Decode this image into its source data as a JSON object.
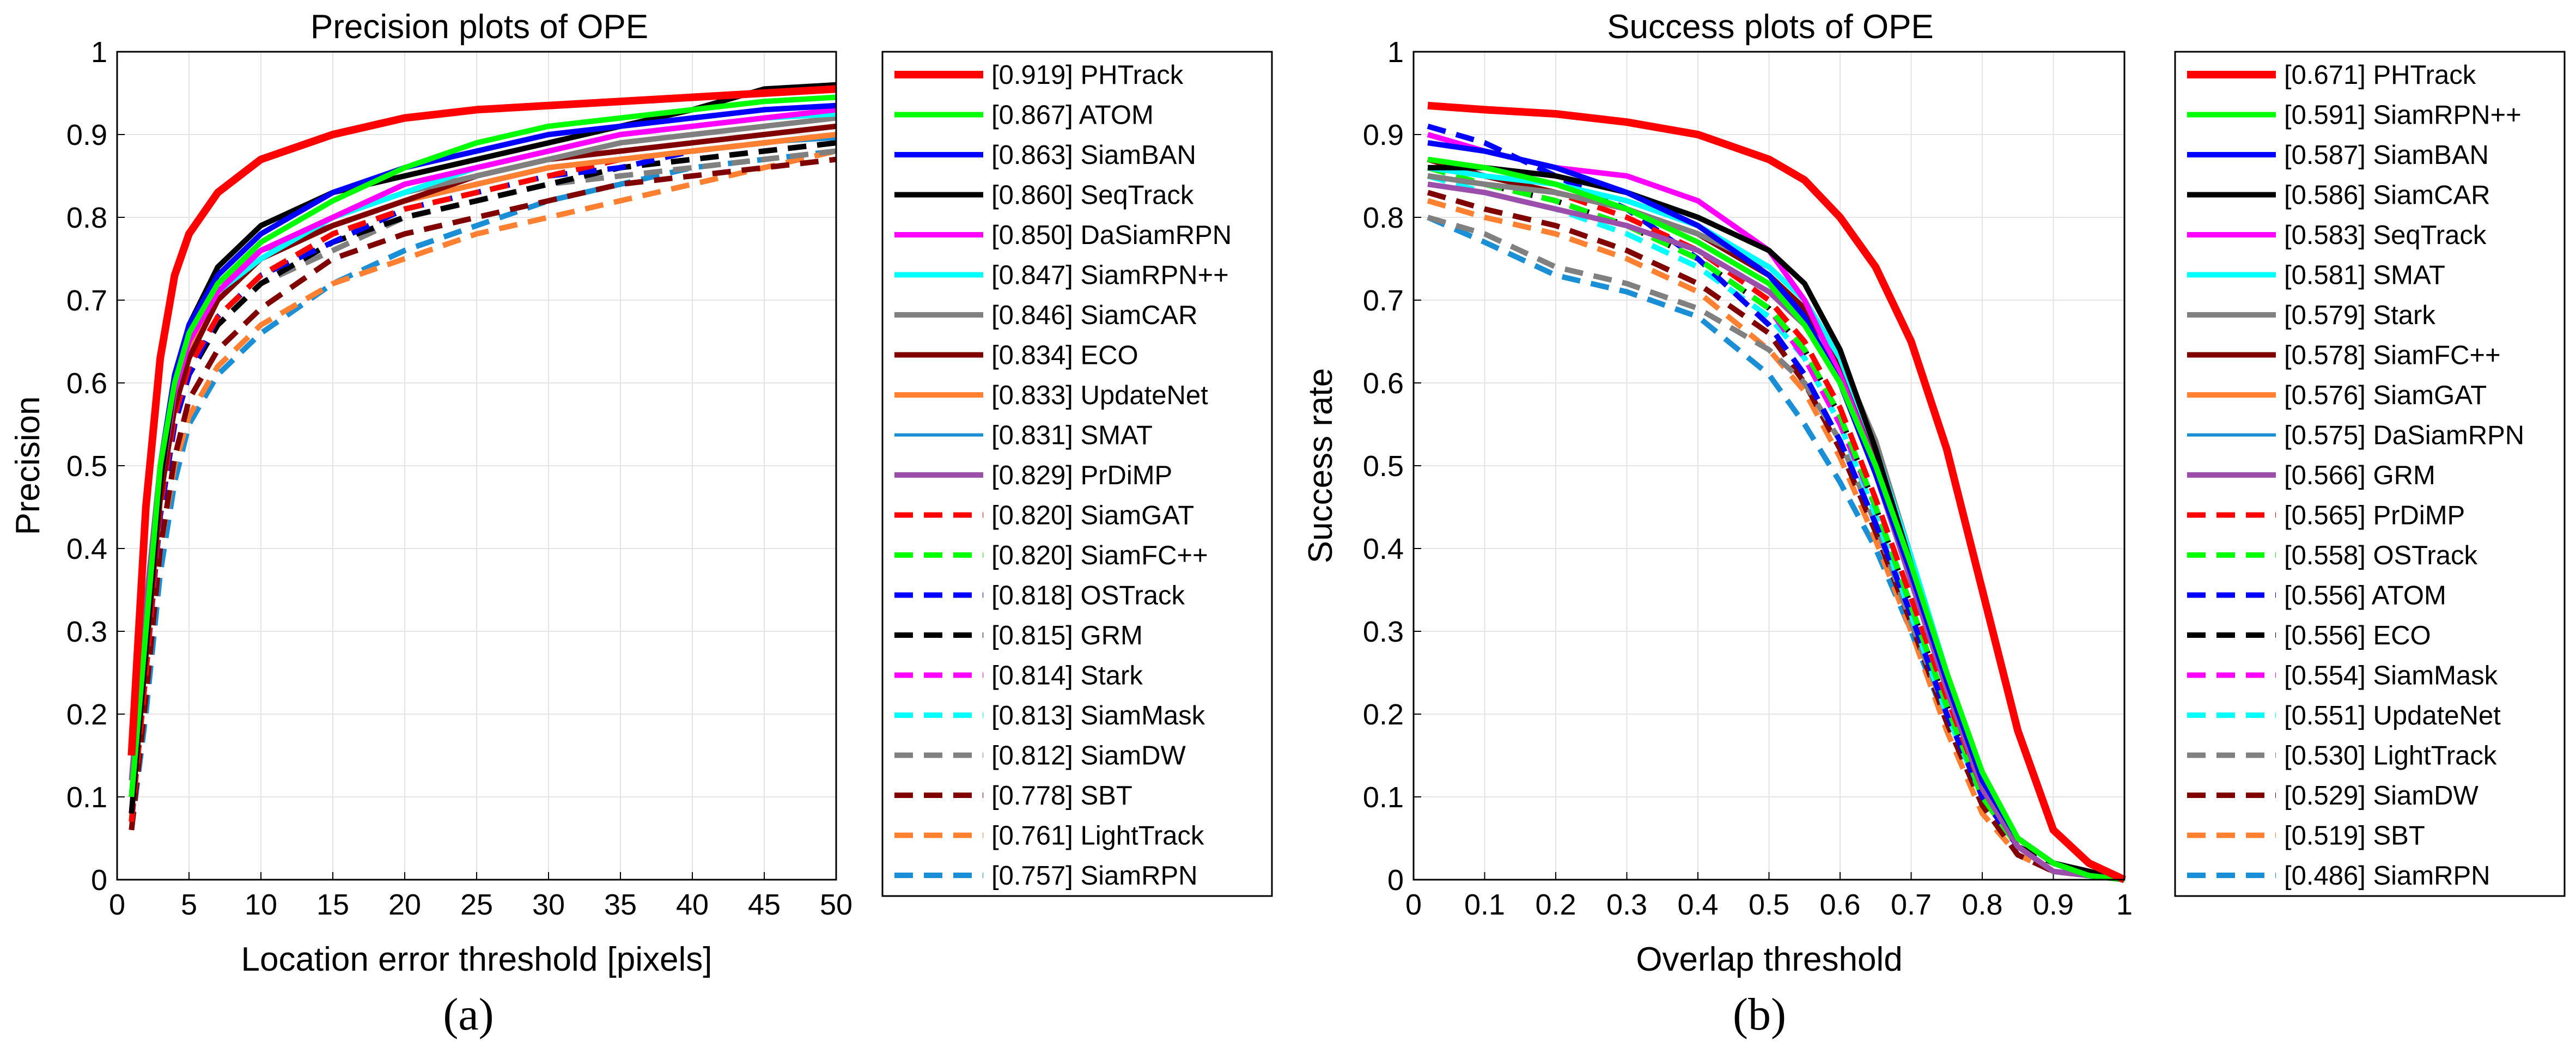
{
  "chart_data": [
    {
      "type": "line",
      "caption": "(a)",
      "title": "Precision plots of OPE",
      "xlabel": "Location error threshold [pixels]",
      "ylabel": "Precision",
      "xlim": [
        0,
        50
      ],
      "ylim": [
        0,
        1
      ],
      "xticks": [
        "0",
        "5",
        "10",
        "15",
        "20",
        "25",
        "30",
        "35",
        "40",
        "45",
        "50"
      ],
      "yticks": [
        "0",
        "0.1",
        "0.2",
        "0.3",
        "0.4",
        "0.5",
        "0.6",
        "0.7",
        "0.8",
        "0.9",
        "1"
      ],
      "grid": true,
      "legend_position": "outside-right",
      "x": [
        1,
        2,
        3,
        4,
        5,
        7,
        10,
        15,
        20,
        25,
        30,
        35,
        40,
        45,
        50
      ],
      "series": [
        {
          "label": "[0.919] PHTrack",
          "color": "#ff0000",
          "dash": "solid",
          "values": [
            0.15,
            0.45,
            0.63,
            0.73,
            0.78,
            0.83,
            0.87,
            0.9,
            0.92,
            0.93,
            0.935,
            0.94,
            0.945,
            0.95,
            0.955
          ]
        },
        {
          "label": "[0.867] ATOM",
          "color": "#00ff00",
          "dash": "solid",
          "values": [
            0.1,
            0.3,
            0.5,
            0.6,
            0.66,
            0.72,
            0.77,
            0.82,
            0.86,
            0.89,
            0.91,
            0.92,
            0.93,
            0.94,
            0.945
          ]
        },
        {
          "label": "[0.863] SiamBAN",
          "color": "#0000ff",
          "dash": "solid",
          "values": [
            0.1,
            0.3,
            0.5,
            0.61,
            0.67,
            0.73,
            0.78,
            0.83,
            0.86,
            0.88,
            0.9,
            0.91,
            0.92,
            0.93,
            0.935
          ]
        },
        {
          "label": "[0.860] SeqTrack",
          "color": "#000000",
          "dash": "solid",
          "values": [
            0.08,
            0.28,
            0.48,
            0.6,
            0.67,
            0.74,
            0.79,
            0.83,
            0.85,
            0.87,
            0.89,
            0.91,
            0.93,
            0.955,
            0.96
          ]
        },
        {
          "label": "[0.850] DaSiamRPN",
          "color": "#ff00ff",
          "dash": "solid",
          "values": [
            0.1,
            0.3,
            0.48,
            0.59,
            0.65,
            0.71,
            0.76,
            0.8,
            0.84,
            0.86,
            0.88,
            0.9,
            0.91,
            0.92,
            0.93
          ]
        },
        {
          "label": "[0.847] SiamRPN++",
          "color": "#00ffff",
          "dash": "solid",
          "values": [
            0.1,
            0.3,
            0.48,
            0.59,
            0.65,
            0.71,
            0.75,
            0.8,
            0.83,
            0.86,
            0.88,
            0.9,
            0.91,
            0.92,
            0.925
          ]
        },
        {
          "label": "[0.846] SiamCAR",
          "color": "#808080",
          "dash": "solid",
          "values": [
            0.1,
            0.3,
            0.48,
            0.59,
            0.65,
            0.72,
            0.76,
            0.8,
            0.83,
            0.85,
            0.87,
            0.89,
            0.9,
            0.91,
            0.92
          ]
        },
        {
          "label": "[0.834] ECO",
          "color": "#800000",
          "dash": "solid",
          "values": [
            0.08,
            0.27,
            0.46,
            0.57,
            0.63,
            0.7,
            0.75,
            0.79,
            0.82,
            0.85,
            0.87,
            0.88,
            0.89,
            0.9,
            0.91
          ]
        },
        {
          "label": "[0.833] UpdateNet",
          "color": "#ff8030",
          "dash": "solid",
          "values": [
            0.08,
            0.28,
            0.47,
            0.58,
            0.64,
            0.7,
            0.75,
            0.79,
            0.82,
            0.84,
            0.86,
            0.87,
            0.88,
            0.89,
            0.9
          ]
        },
        {
          "label": "[0.831] SMAT",
          "color": "#1a8fd6",
          "dash": "solid",
          "values": [
            0.09,
            0.28,
            0.47,
            0.58,
            0.64,
            0.7,
            0.75,
            0.79,
            0.82,
            0.84,
            0.86,
            0.87,
            0.88,
            0.89,
            0.895
          ]
        },
        {
          "label": "[0.829] PrDiMP",
          "color": "#9b4faa",
          "dash": "solid",
          "values": [
            0.12,
            0.33,
            0.5,
            0.6,
            0.66,
            0.72,
            0.76,
            0.79,
            0.82,
            0.84,
            0.86,
            0.87,
            0.88,
            0.89,
            0.9
          ]
        },
        {
          "label": "[0.820] SiamGAT",
          "color": "#ff0000",
          "dash": "dashed",
          "values": [
            0.07,
            0.25,
            0.45,
            0.56,
            0.62,
            0.68,
            0.73,
            0.78,
            0.81,
            0.83,
            0.85,
            0.87,
            0.88,
            0.89,
            0.9
          ]
        },
        {
          "label": "[0.820] SiamFC++",
          "color": "#00ff00",
          "dash": "dashed",
          "values": [
            0.07,
            0.25,
            0.45,
            0.56,
            0.62,
            0.68,
            0.73,
            0.78,
            0.81,
            0.83,
            0.85,
            0.87,
            0.88,
            0.89,
            0.9
          ]
        },
        {
          "label": "[0.818] OSTrack",
          "color": "#0000ff",
          "dash": "dashed",
          "values": [
            0.07,
            0.25,
            0.44,
            0.55,
            0.61,
            0.68,
            0.73,
            0.77,
            0.81,
            0.83,
            0.85,
            0.86,
            0.88,
            0.89,
            0.9
          ]
        },
        {
          "label": "[0.815] GRM",
          "color": "#000000",
          "dash": "dashed",
          "values": [
            0.07,
            0.25,
            0.44,
            0.55,
            0.61,
            0.67,
            0.72,
            0.77,
            0.8,
            0.82,
            0.84,
            0.86,
            0.87,
            0.88,
            0.89
          ]
        },
        {
          "label": "[0.814] Stark",
          "color": "#ff00ff",
          "dash": "dashed",
          "values": [
            0.07,
            0.25,
            0.44,
            0.55,
            0.61,
            0.67,
            0.72,
            0.77,
            0.8,
            0.82,
            0.84,
            0.86,
            0.87,
            0.88,
            0.89
          ]
        },
        {
          "label": "[0.813] SiamMask",
          "color": "#00ffff",
          "dash": "dashed",
          "values": [
            0.07,
            0.25,
            0.44,
            0.55,
            0.61,
            0.67,
            0.72,
            0.77,
            0.8,
            0.82,
            0.84,
            0.86,
            0.87,
            0.88,
            0.89
          ]
        },
        {
          "label": "[0.812] SiamDW",
          "color": "#808080",
          "dash": "dashed",
          "values": [
            0.07,
            0.25,
            0.44,
            0.55,
            0.61,
            0.67,
            0.72,
            0.76,
            0.8,
            0.82,
            0.84,
            0.85,
            0.86,
            0.87,
            0.88
          ]
        },
        {
          "label": "[0.778] SBT",
          "color": "#800000",
          "dash": "dashed",
          "values": [
            0.06,
            0.22,
            0.4,
            0.51,
            0.58,
            0.64,
            0.69,
            0.75,
            0.78,
            0.8,
            0.82,
            0.84,
            0.85,
            0.86,
            0.87
          ]
        },
        {
          "label": "[0.761] LightTrack",
          "color": "#ff8030",
          "dash": "dashed",
          "values": [
            0.06,
            0.22,
            0.4,
            0.5,
            0.56,
            0.62,
            0.67,
            0.72,
            0.75,
            0.78,
            0.8,
            0.82,
            0.84,
            0.86,
            0.88
          ]
        },
        {
          "label": "[0.757] SiamRPN",
          "color": "#1a8fd6",
          "dash": "dashed",
          "values": [
            0.06,
            0.2,
            0.37,
            0.48,
            0.55,
            0.61,
            0.66,
            0.72,
            0.76,
            0.79,
            0.82,
            0.84,
            0.86,
            0.87,
            0.88
          ]
        }
      ]
    },
    {
      "type": "line",
      "caption": "(b)",
      "title": "Success plots of OPE",
      "xlabel": "Overlap threshold",
      "ylabel": "Success rate",
      "xlim": [
        0,
        1
      ],
      "ylim": [
        0,
        1
      ],
      "xticks": [
        "0",
        "0.1",
        "0.2",
        "0.3",
        "0.4",
        "0.5",
        "0.6",
        "0.7",
        "0.8",
        "0.9",
        "1"
      ],
      "yticks": [
        "0",
        "0.1",
        "0.2",
        "0.3",
        "0.4",
        "0.5",
        "0.6",
        "0.7",
        "0.8",
        "0.9",
        "1"
      ],
      "grid": true,
      "legend_position": "outside-right",
      "x": [
        0.02,
        0.1,
        0.2,
        0.3,
        0.4,
        0.5,
        0.55,
        0.6,
        0.65,
        0.7,
        0.75,
        0.8,
        0.85,
        0.9,
        0.95,
        1.0
      ],
      "series": [
        {
          "label": "[0.671] PHTrack",
          "color": "#ff0000",
          "dash": "solid",
          "values": [
            0.935,
            0.93,
            0.925,
            0.915,
            0.9,
            0.87,
            0.845,
            0.8,
            0.74,
            0.65,
            0.52,
            0.35,
            0.18,
            0.06,
            0.02,
            0.0
          ]
        },
        {
          "label": "[0.591] SiamRPN++",
          "color": "#00ff00",
          "dash": "solid",
          "values": [
            0.87,
            0.86,
            0.84,
            0.81,
            0.77,
            0.72,
            0.67,
            0.6,
            0.5,
            0.38,
            0.25,
            0.13,
            0.05,
            0.02,
            0.005,
            0.0
          ]
        },
        {
          "label": "[0.587] SiamBAN",
          "color": "#0000ff",
          "dash": "solid",
          "values": [
            0.89,
            0.88,
            0.86,
            0.83,
            0.79,
            0.73,
            0.68,
            0.6,
            0.49,
            0.37,
            0.24,
            0.12,
            0.05,
            0.02,
            0.005,
            0.0
          ]
        },
        {
          "label": "[0.586] SiamCAR",
          "color": "#000000",
          "dash": "solid",
          "values": [
            0.86,
            0.86,
            0.85,
            0.83,
            0.8,
            0.76,
            0.72,
            0.64,
            0.52,
            0.38,
            0.24,
            0.12,
            0.05,
            0.02,
            0.01,
            0.0
          ]
        },
        {
          "label": "[0.583] SeqTrack",
          "color": "#ff00ff",
          "dash": "solid",
          "values": [
            0.9,
            0.88,
            0.86,
            0.85,
            0.82,
            0.76,
            0.7,
            0.61,
            0.5,
            0.37,
            0.24,
            0.12,
            0.05,
            0.02,
            0.005,
            0.0
          ]
        },
        {
          "label": "[0.581] SMAT",
          "color": "#00ffff",
          "dash": "solid",
          "values": [
            0.86,
            0.85,
            0.84,
            0.82,
            0.79,
            0.74,
            0.7,
            0.63,
            0.52,
            0.39,
            0.25,
            0.12,
            0.05,
            0.02,
            0.005,
            0.0
          ]
        },
        {
          "label": "[0.579] Stark",
          "color": "#808080",
          "dash": "solid",
          "values": [
            0.85,
            0.84,
            0.83,
            0.81,
            0.78,
            0.74,
            0.7,
            0.63,
            0.53,
            0.39,
            0.25,
            0.12,
            0.05,
            0.02,
            0.005,
            0.0
          ]
        },
        {
          "label": "[0.578] SiamFC++",
          "color": "#800000",
          "dash": "solid",
          "values": [
            0.87,
            0.85,
            0.83,
            0.81,
            0.78,
            0.73,
            0.69,
            0.62,
            0.51,
            0.38,
            0.24,
            0.12,
            0.05,
            0.02,
            0.005,
            0.0
          ]
        },
        {
          "label": "[0.576] SiamGAT",
          "color": "#ff8030",
          "dash": "solid",
          "values": [
            0.86,
            0.85,
            0.83,
            0.81,
            0.78,
            0.73,
            0.69,
            0.62,
            0.51,
            0.38,
            0.24,
            0.12,
            0.05,
            0.02,
            0.005,
            0.0
          ]
        },
        {
          "label": "[0.575] DaSiamRPN",
          "color": "#1a8fd6",
          "dash": "solid",
          "values": [
            0.86,
            0.85,
            0.83,
            0.81,
            0.78,
            0.73,
            0.69,
            0.62,
            0.51,
            0.37,
            0.24,
            0.12,
            0.05,
            0.02,
            0.005,
            0.0
          ]
        },
        {
          "label": "[0.566] GRM",
          "color": "#9b4faa",
          "dash": "solid",
          "values": [
            0.84,
            0.83,
            0.81,
            0.79,
            0.76,
            0.71,
            0.67,
            0.6,
            0.49,
            0.36,
            0.23,
            0.11,
            0.04,
            0.01,
            0.005,
            0.0
          ]
        },
        {
          "label": "[0.565] PrDiMP",
          "color": "#ff0000",
          "dash": "dashed",
          "values": [
            0.87,
            0.85,
            0.83,
            0.8,
            0.76,
            0.7,
            0.65,
            0.57,
            0.46,
            0.34,
            0.22,
            0.11,
            0.04,
            0.01,
            0.005,
            0.0
          ]
        },
        {
          "label": "[0.558] OSTrack",
          "color": "#00ff00",
          "dash": "dashed",
          "values": [
            0.86,
            0.84,
            0.82,
            0.79,
            0.75,
            0.69,
            0.64,
            0.56,
            0.45,
            0.33,
            0.21,
            0.1,
            0.04,
            0.01,
            0.005,
            0.0
          ]
        },
        {
          "label": "[0.556] ATOM",
          "color": "#0000ff",
          "dash": "dashed",
          "values": [
            0.91,
            0.89,
            0.85,
            0.81,
            0.75,
            0.67,
            0.61,
            0.53,
            0.43,
            0.32,
            0.2,
            0.1,
            0.04,
            0.01,
            0.005,
            0.0
          ]
        },
        {
          "label": "[0.556] ECO",
          "color": "#000000",
          "dash": "dashed",
          "values": [
            0.85,
            0.84,
            0.82,
            0.79,
            0.75,
            0.69,
            0.64,
            0.56,
            0.45,
            0.33,
            0.21,
            0.1,
            0.04,
            0.02,
            0.01,
            0.0
          ]
        },
        {
          "label": "[0.554] SiamMask",
          "color": "#ff00ff",
          "dash": "dashed",
          "values": [
            0.86,
            0.84,
            0.82,
            0.79,
            0.75,
            0.69,
            0.63,
            0.55,
            0.45,
            0.33,
            0.21,
            0.1,
            0.04,
            0.01,
            0.005,
            0.0
          ]
        },
        {
          "label": "[0.551] UpdateNet",
          "color": "#00ffff",
          "dash": "dashed",
          "values": [
            0.85,
            0.83,
            0.81,
            0.78,
            0.74,
            0.68,
            0.63,
            0.55,
            0.44,
            0.32,
            0.2,
            0.1,
            0.04,
            0.01,
            0.005,
            0.0
          ]
        },
        {
          "label": "[0.530] LightTrack",
          "color": "#808080",
          "dash": "dashed",
          "values": [
            0.8,
            0.78,
            0.74,
            0.72,
            0.69,
            0.64,
            0.6,
            0.53,
            0.43,
            0.31,
            0.2,
            0.1,
            0.04,
            0.01,
            0.005,
            0.0
          ]
        },
        {
          "label": "[0.529] SiamDW",
          "color": "#800000",
          "dash": "dashed",
          "values": [
            0.83,
            0.81,
            0.79,
            0.76,
            0.72,
            0.66,
            0.6,
            0.52,
            0.42,
            0.31,
            0.19,
            0.09,
            0.03,
            0.01,
            0.005,
            0.0
          ]
        },
        {
          "label": "[0.519] SBT",
          "color": "#ff8030",
          "dash": "dashed",
          "values": [
            0.82,
            0.8,
            0.78,
            0.75,
            0.71,
            0.64,
            0.59,
            0.51,
            0.41,
            0.3,
            0.18,
            0.08,
            0.03,
            0.01,
            0.005,
            0.0
          ]
        },
        {
          "label": "[0.486] SiamRPN",
          "color": "#1a8fd6",
          "dash": "dashed",
          "values": [
            0.8,
            0.77,
            0.73,
            0.71,
            0.68,
            0.61,
            0.55,
            0.48,
            0.4,
            0.3,
            0.19,
            0.09,
            0.03,
            0.01,
            0.005,
            0.0
          ]
        }
      ]
    }
  ]
}
